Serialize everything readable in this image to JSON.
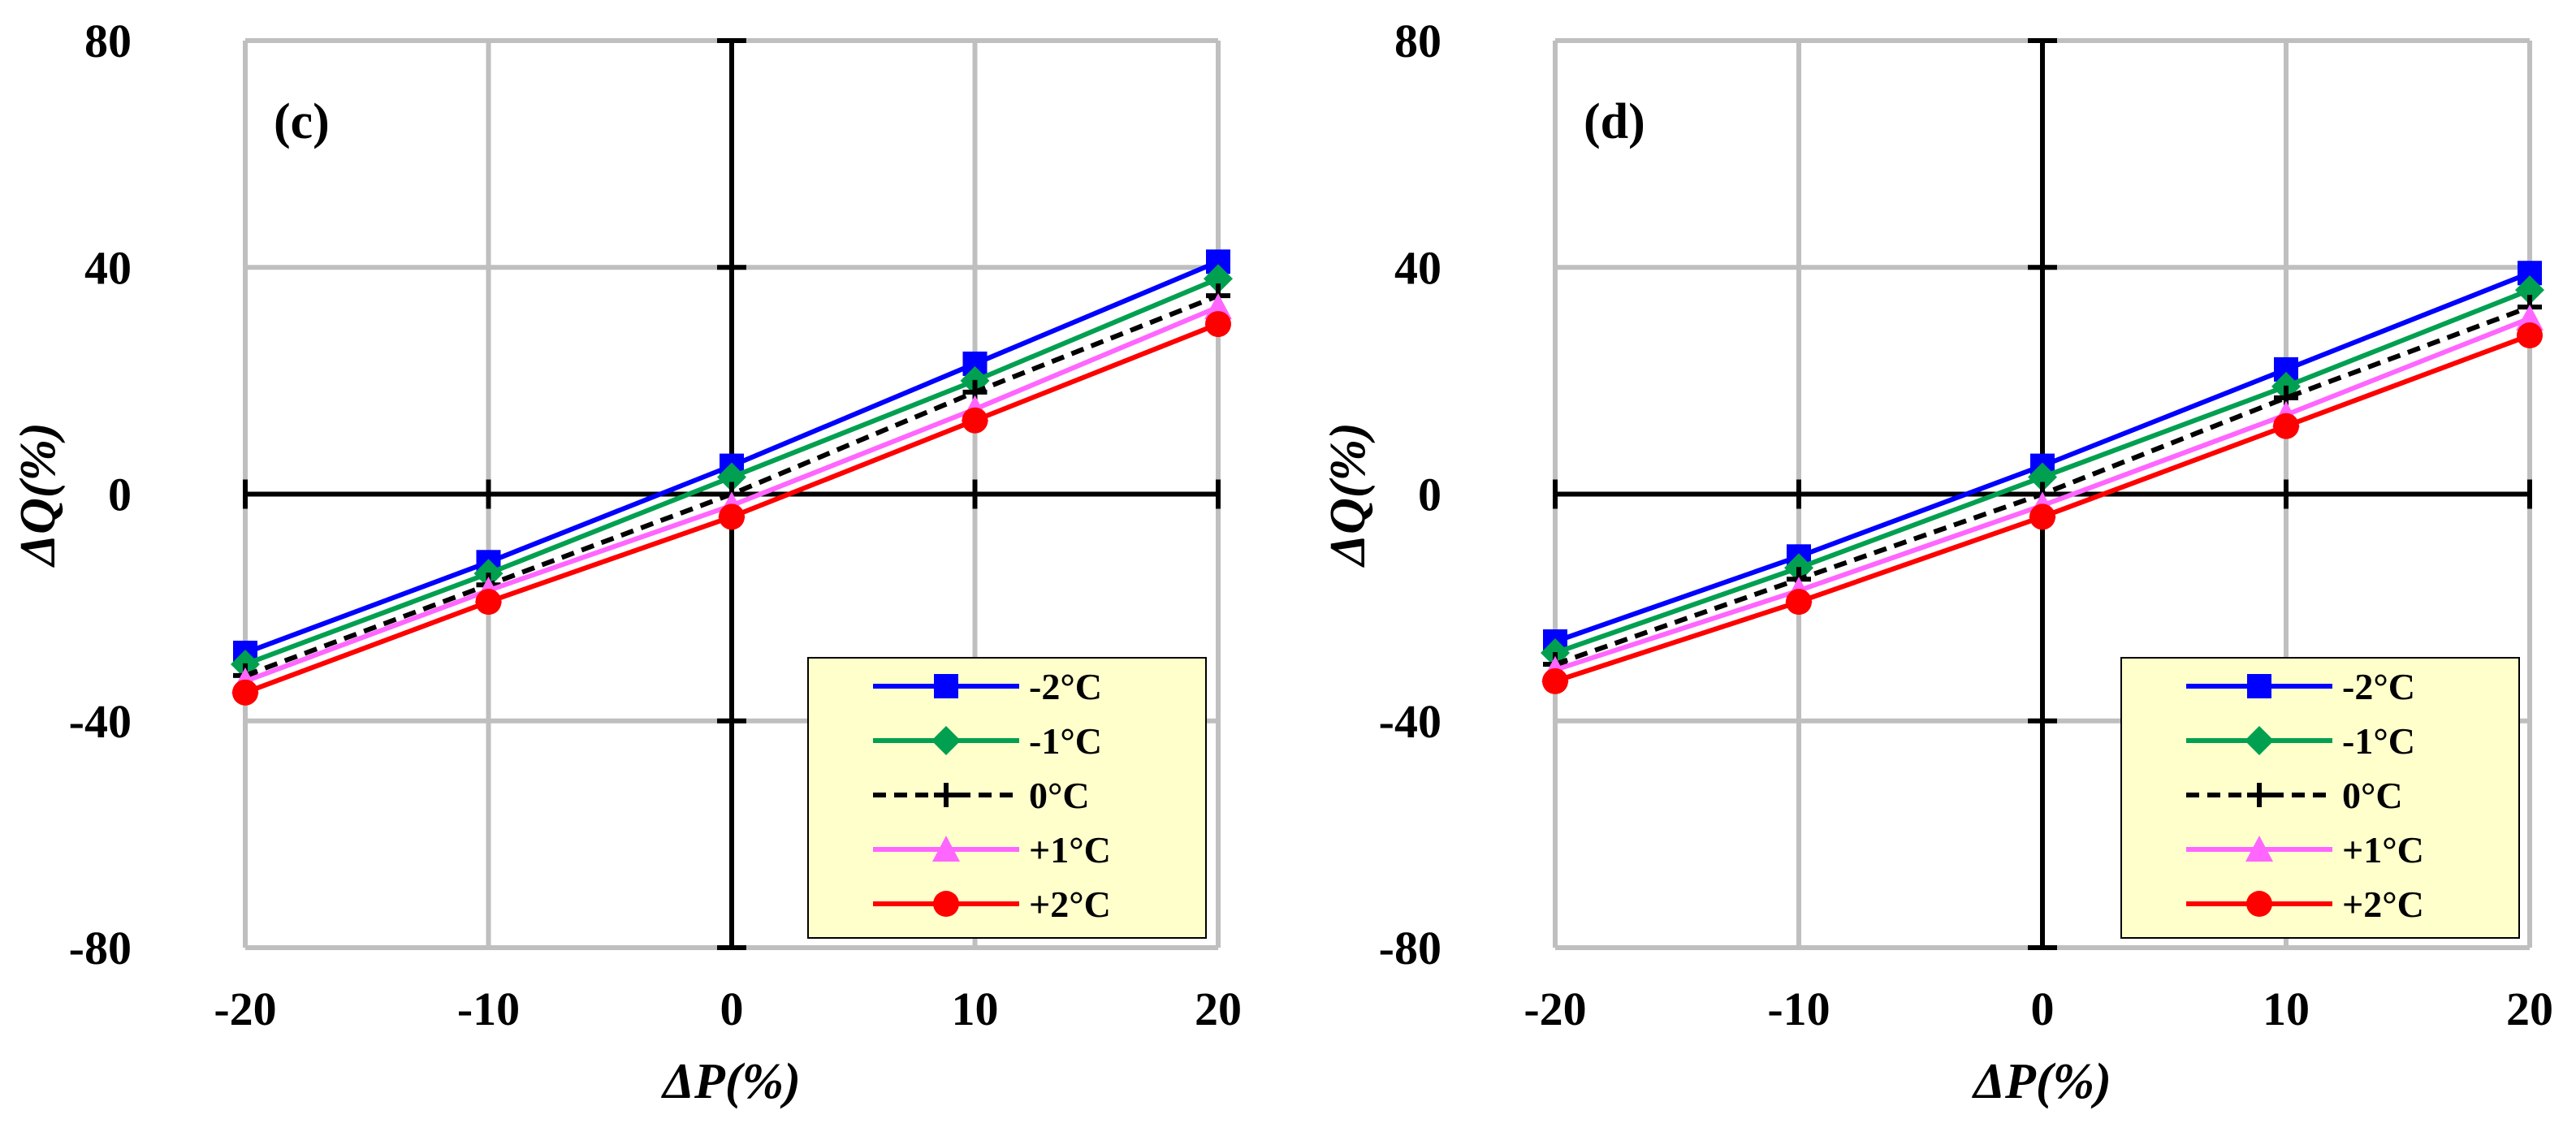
{
  "chart_data": [
    {
      "type": "line",
      "panel_label": "(c)",
      "xlabel": "ΔP(%)",
      "ylabel": "ΔQ(%)",
      "x": [
        -20,
        -10,
        0,
        10,
        20
      ],
      "xlim": [
        -20,
        20
      ],
      "ylim": [
        -80,
        80
      ],
      "xticks": [
        "-20",
        "-10",
        "0",
        "10",
        "20"
      ],
      "yticks": [
        "80",
        "40",
        "0",
        "-40",
        "-80"
      ],
      "grid": true,
      "legend_position": "bottom-right",
      "series": [
        {
          "name": "-2°C",
          "color": "#0000ff",
          "marker": "square",
          "dash": "solid",
          "values": [
            -28,
            -12,
            5,
            23,
            41
          ]
        },
        {
          "name": "-1°C",
          "color": "#00a050",
          "marker": "diamond",
          "dash": "solid",
          "values": [
            -30,
            -14,
            3,
            20,
            38
          ]
        },
        {
          "name": "0°C",
          "color": "#000000",
          "marker": "plus",
          "dash": "dashed",
          "values": [
            -32,
            -16,
            0,
            18,
            35
          ]
        },
        {
          "name": "+1°C",
          "color": "#ff66ff",
          "marker": "triangle",
          "dash": "solid",
          "values": [
            -33,
            -17,
            -2,
            15,
            33
          ]
        },
        {
          "name": "+2°C",
          "color": "#ff0000",
          "marker": "circle",
          "dash": "solid",
          "values": [
            -35,
            -19,
            -4,
            13,
            30
          ]
        }
      ]
    },
    {
      "type": "line",
      "panel_label": "(d)",
      "xlabel": "ΔP(%)",
      "ylabel": "ΔQ(%)",
      "x": [
        -20,
        -10,
        0,
        10,
        20
      ],
      "xlim": [
        -20,
        20
      ],
      "ylim": [
        -80,
        80
      ],
      "xticks": [
        "-20",
        "-10",
        "0",
        "10",
        "20"
      ],
      "yticks": [
        "80",
        "40",
        "0",
        "-40",
        "-80"
      ],
      "grid": true,
      "legend_position": "bottom-right",
      "series": [
        {
          "name": "-2°C",
          "color": "#0000ff",
          "marker": "square",
          "dash": "solid",
          "values": [
            -26,
            -11,
            5,
            22,
            39
          ]
        },
        {
          "name": "-1°C",
          "color": "#00a050",
          "marker": "diamond",
          "dash": "solid",
          "values": [
            -28,
            -13,
            3,
            19,
            36
          ]
        },
        {
          "name": "0°C",
          "color": "#000000",
          "marker": "plus",
          "dash": "dashed",
          "values": [
            -30,
            -15,
            0,
            17,
            33
          ]
        },
        {
          "name": "+1°C",
          "color": "#ff66ff",
          "marker": "triangle",
          "dash": "solid",
          "values": [
            -31,
            -17,
            -2,
            14,
            31
          ]
        },
        {
          "name": "+2°C",
          "color": "#ff0000",
          "marker": "circle",
          "dash": "solid",
          "values": [
            -33,
            -19,
            -4,
            12,
            28
          ]
        }
      ]
    }
  ]
}
